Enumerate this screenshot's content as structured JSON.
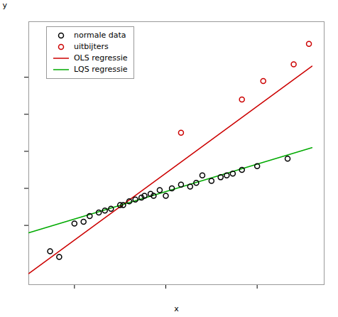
{
  "chart_data": {
    "type": "scatter",
    "xlabel": "x",
    "ylabel": "y",
    "series": [
      {
        "name": "normale data",
        "type": "scatter",
        "marker": "circle",
        "color": "#000000",
        "x": [
          1.2,
          1.5,
          2.0,
          2.3,
          2.5,
          2.8,
          3.0,
          3.2,
          3.5,
          3.6,
          3.8,
          4.0,
          4.2,
          4.3,
          4.5,
          4.6,
          4.8,
          5.0,
          5.2,
          5.5,
          5.8,
          6.0,
          6.2,
          6.5,
          6.8,
          7.0,
          7.2,
          7.5,
          8.0,
          9.0
        ],
        "values": [
          0.3,
          0.15,
          1.05,
          1.1,
          1.25,
          1.35,
          1.4,
          1.45,
          1.55,
          1.55,
          1.65,
          1.7,
          1.75,
          1.8,
          1.85,
          1.8,
          1.95,
          1.8,
          2.0,
          2.1,
          2.05,
          2.15,
          2.35,
          2.2,
          2.3,
          2.35,
          2.4,
          2.5,
          2.6,
          2.8
        ]
      },
      {
        "name": "uitbijters",
        "type": "scatter",
        "marker": "circle",
        "color": "#cc0000",
        "x": [
          5.5,
          7.5,
          8.2,
          9.2,
          9.7
        ],
        "values": [
          3.5,
          4.4,
          4.9,
          5.35,
          5.9
        ]
      },
      {
        "name": "OLS regressie",
        "type": "line",
        "color": "#cc0000",
        "x": [
          0.5,
          9.8
        ],
        "values": [
          -0.3,
          5.3
        ]
      },
      {
        "name": "LQS regressie",
        "type": "line",
        "color": "#00aa00",
        "x": [
          0.5,
          9.8
        ],
        "values": [
          0.8,
          3.1
        ]
      }
    ],
    "xlim": [
      0.5,
      10.2
    ],
    "ylim": [
      -0.6,
      6.5
    ],
    "xticks": [
      2,
      5,
      8
    ],
    "yticks": [
      1,
      2,
      3,
      4,
      5
    ],
    "tick_labels": false,
    "legend": "upper left"
  }
}
